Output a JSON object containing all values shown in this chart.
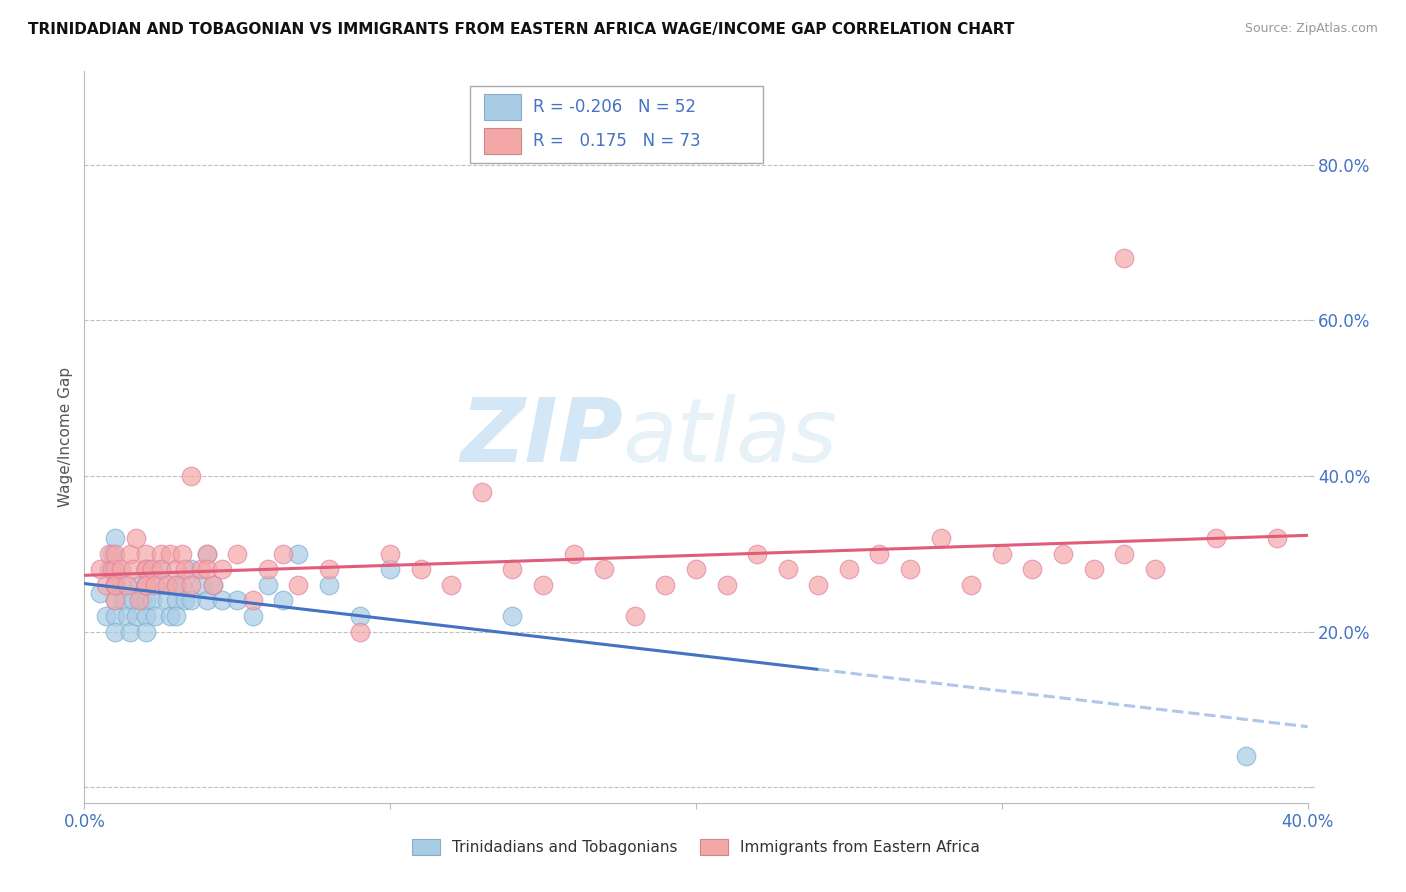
{
  "title": "TRINIDADIAN AND TOBAGONIAN VS IMMIGRANTS FROM EASTERN AFRICA WAGE/INCOME GAP CORRELATION CHART",
  "source": "Source: ZipAtlas.com",
  "ylabel": "Wage/Income Gap",
  "xlim": [
    0.0,
    0.4
  ],
  "ylim": [
    -0.02,
    0.92
  ],
  "ytick_positions": [
    0.0,
    0.2,
    0.4,
    0.6,
    0.8
  ],
  "ytick_labels": [
    "",
    "20.0%",
    "40.0%",
    "60.0%",
    "80.0%"
  ],
  "blue_color": "#a8cce4",
  "pink_color": "#f4a7a7",
  "blue_line_color": "#4472c4",
  "pink_line_color": "#e05c7a",
  "blue_dashed_color": "#aec8e8",
  "legend_r_blue": "-0.206",
  "legend_n_blue": "52",
  "legend_r_pink": "0.175",
  "legend_n_pink": "73",
  "watermark_zip": "ZIP",
  "watermark_atlas": "atlas",
  "background_color": "#ffffff",
  "grid_color": "#c0c0c0",
  "blue_r": -0.206,
  "pink_r": 0.175,
  "blue_scatter_x": [
    0.005,
    0.007,
    0.008,
    0.009,
    0.01,
    0.01,
    0.01,
    0.01,
    0.01,
    0.01,
    0.012,
    0.013,
    0.014,
    0.015,
    0.016,
    0.017,
    0.018,
    0.019,
    0.02,
    0.02,
    0.02,
    0.02,
    0.02,
    0.02,
    0.022,
    0.023,
    0.025,
    0.025,
    0.027,
    0.028,
    0.03,
    0.03,
    0.03,
    0.032,
    0.033,
    0.035,
    0.035,
    0.038,
    0.04,
    0.04,
    0.042,
    0.045,
    0.05,
    0.055,
    0.06,
    0.065,
    0.07,
    0.08,
    0.09,
    0.1,
    0.14,
    0.38
  ],
  "blue_scatter_y": [
    0.25,
    0.22,
    0.28,
    0.3,
    0.26,
    0.24,
    0.22,
    0.28,
    0.32,
    0.2,
    0.26,
    0.24,
    0.22,
    0.2,
    0.24,
    0.22,
    0.26,
    0.24,
    0.28,
    0.26,
    0.22,
    0.2,
    0.24,
    0.26,
    0.24,
    0.22,
    0.28,
    0.26,
    0.24,
    0.22,
    0.26,
    0.24,
    0.22,
    0.26,
    0.24,
    0.28,
    0.24,
    0.26,
    0.3,
    0.24,
    0.26,
    0.24,
    0.24,
    0.22,
    0.26,
    0.24,
    0.3,
    0.26,
    0.22,
    0.28,
    0.22,
    0.04
  ],
  "pink_scatter_x": [
    0.005,
    0.007,
    0.008,
    0.009,
    0.01,
    0.01,
    0.01,
    0.01,
    0.01,
    0.012,
    0.014,
    0.015,
    0.016,
    0.017,
    0.018,
    0.02,
    0.02,
    0.02,
    0.02,
    0.02,
    0.022,
    0.023,
    0.025,
    0.025,
    0.027,
    0.028,
    0.03,
    0.03,
    0.032,
    0.033,
    0.035,
    0.035,
    0.038,
    0.04,
    0.04,
    0.042,
    0.045,
    0.05,
    0.055,
    0.06,
    0.065,
    0.07,
    0.08,
    0.09,
    0.1,
    0.11,
    0.12,
    0.13,
    0.14,
    0.15,
    0.16,
    0.17,
    0.18,
    0.19,
    0.2,
    0.21,
    0.22,
    0.23,
    0.24,
    0.25,
    0.26,
    0.27,
    0.28,
    0.29,
    0.3,
    0.31,
    0.32,
    0.33,
    0.34,
    0.35,
    0.37,
    0.39,
    0.34
  ],
  "pink_scatter_y": [
    0.28,
    0.26,
    0.3,
    0.28,
    0.26,
    0.24,
    0.28,
    0.3,
    0.26,
    0.28,
    0.26,
    0.3,
    0.28,
    0.32,
    0.24,
    0.28,
    0.26,
    0.3,
    0.28,
    0.26,
    0.28,
    0.26,
    0.3,
    0.28,
    0.26,
    0.3,
    0.28,
    0.26,
    0.3,
    0.28,
    0.4,
    0.26,
    0.28,
    0.3,
    0.28,
    0.26,
    0.28,
    0.3,
    0.24,
    0.28,
    0.3,
    0.26,
    0.28,
    0.2,
    0.3,
    0.28,
    0.26,
    0.38,
    0.28,
    0.26,
    0.3,
    0.28,
    0.22,
    0.26,
    0.28,
    0.26,
    0.3,
    0.28,
    0.26,
    0.28,
    0.3,
    0.28,
    0.32,
    0.26,
    0.3,
    0.28,
    0.3,
    0.28,
    0.3,
    0.28,
    0.32,
    0.32,
    0.68
  ]
}
